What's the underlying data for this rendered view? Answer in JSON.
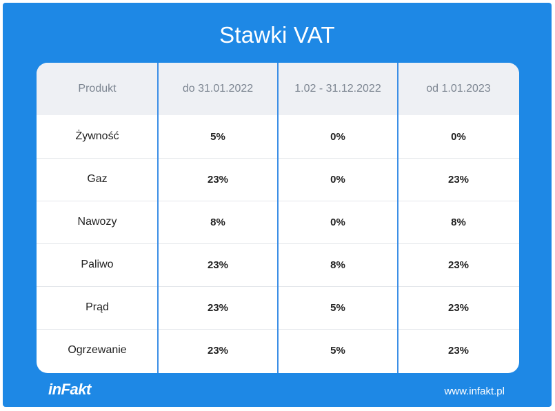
{
  "title": "Stawki VAT",
  "table": {
    "headers": [
      "Produkt",
      "do 31.01.2022",
      "1.02 - 31.12.2022",
      "od 1.01.2023"
    ],
    "rows": [
      [
        "Żywność",
        "5%",
        "0%",
        "0%"
      ],
      [
        "Gaz",
        "23%",
        "0%",
        "23%"
      ],
      [
        "Nawozy",
        "8%",
        "0%",
        "8%"
      ],
      [
        "Paliwo",
        "23%",
        "8%",
        "23%"
      ],
      [
        "Prąd",
        "23%",
        "5%",
        "23%"
      ],
      [
        "Ogrzewanie",
        "23%",
        "5%",
        "23%"
      ]
    ]
  },
  "footer": {
    "logo": "inFakt",
    "url": "www.infakt.pl"
  },
  "colors": {
    "background": "#1e88e5",
    "header_row": "#eef0f4",
    "divider": "#3d8fe6"
  }
}
